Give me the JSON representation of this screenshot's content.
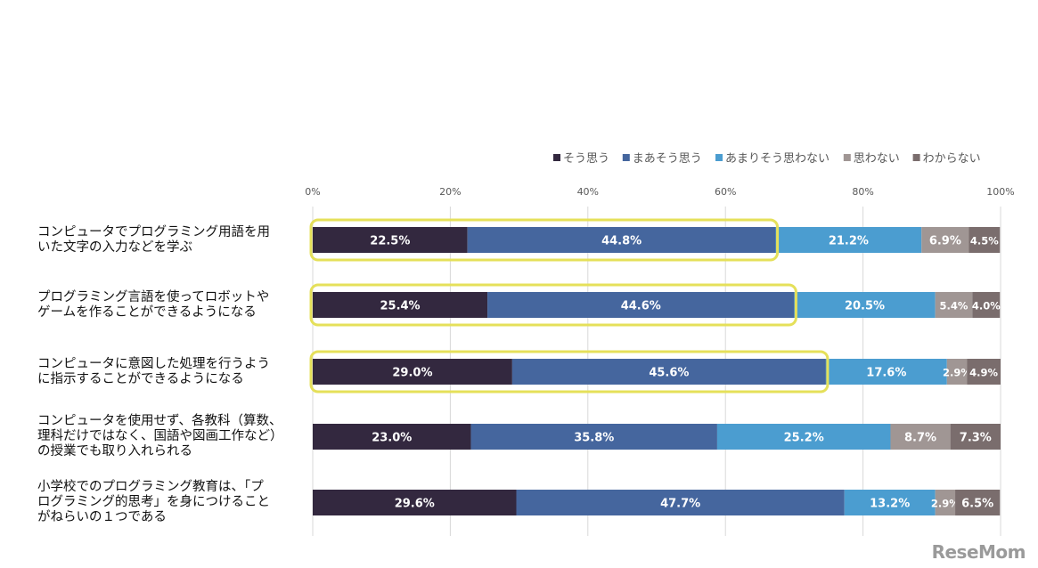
{
  "chart_data": {
    "type": "bar",
    "orientation": "horizontal",
    "stacked": true,
    "percent": true,
    "categories": [
      "コンピュータでプログラミング用語を用いた文字の入力などを学ぶ",
      "プログラミング言語を使ってロボットやゲームを作ることができるようになる",
      "コンピュータに意図した処理を行うように指示することができるようになる",
      "コンピュータを使用せず、各教科（算数、理科だけではなく、国語や図画工作など）の授業でも取り入れられる",
      "小学校でのプログラミング教育は、「プログラミング的思考」を身につけることがねらいの１つである"
    ],
    "category_lines": [
      [
        "コンピュータでプログラミング用語を用",
        "いた文字の入力などを学ぶ"
      ],
      [
        "プログラミング言語を使ってロボットや",
        "ゲームを作ることができるようになる"
      ],
      [
        "コンピュータに意図した処理を行うよう",
        "に指示することができるようになる"
      ],
      [
        "コンピュータを使用せず、各教科（算数、",
        "理科だけではなく、国語や図画工作など）",
        "の授業でも取り入れられる"
      ],
      [
        "小学校でのプログラミング教育は、「プ",
        "ログラミング的思考」を身につけること",
        "がねらいの１つである"
      ]
    ],
    "series": [
      {
        "name": "そう思う",
        "color": "#33283f",
        "values": [
          22.5,
          25.4,
          29.0,
          23.0,
          29.6
        ]
      },
      {
        "name": "まあそう思う",
        "color": "#45669e",
        "values": [
          44.8,
          44.6,
          45.6,
          35.8,
          47.7
        ]
      },
      {
        "name": "あまりそう思わない",
        "color": "#4b9dd0",
        "values": [
          21.2,
          20.5,
          17.6,
          25.2,
          13.2
        ]
      },
      {
        "name": "思わない",
        "color": "#a09694",
        "values": [
          6.9,
          5.4,
          2.9,
          8.7,
          2.9
        ]
      },
      {
        "name": "わからない",
        "color": "#7a6d6d",
        "values": [
          4.5,
          4.0,
          4.9,
          7.3,
          6.5
        ]
      }
    ],
    "xlim": [
      0,
      100
    ],
    "xticks": [
      "0%",
      "20%",
      "40%",
      "60%",
      "80%",
      "100%"
    ],
    "grid": true,
    "legend_position": "top-right",
    "highlight_color": "#e5e05a",
    "highlighted_rows": [
      0,
      1,
      2
    ],
    "highlighted_series": [
      0,
      1
    ]
  },
  "watermark": "ReseMom"
}
